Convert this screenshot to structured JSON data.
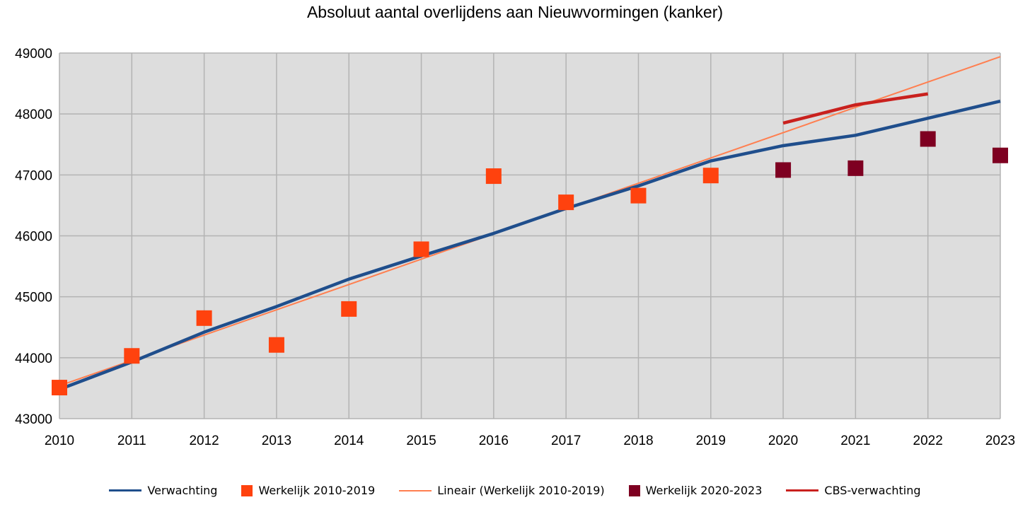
{
  "chart_data": {
    "type": "line",
    "title": "Absoluut aantal overlijdens aan Nieuwvormingen (kanker)",
    "x": [
      2010,
      2011,
      2012,
      2013,
      2014,
      2015,
      2016,
      2017,
      2018,
      2019,
      2020,
      2021,
      2022,
      2023
    ],
    "xlim": [
      2010,
      2023
    ],
    "ylim": [
      43000,
      49000
    ],
    "yticks": [
      "43000",
      "44000",
      "45000",
      "46000",
      "47000",
      "48000",
      "49000"
    ],
    "xticks": [
      "2010",
      "2011",
      "2012",
      "2013",
      "2014",
      "2015",
      "2016",
      "2017",
      "2018",
      "2019",
      "2020",
      "2021",
      "2022",
      "2023"
    ],
    "grid": true,
    "legend_position": "bottom",
    "series": [
      {
        "name": "Verwachting",
        "kind": "line",
        "color": "#1f4e8c",
        "x": [
          2010,
          2011,
          2012,
          2013,
          2014,
          2015,
          2016,
          2017,
          2018,
          2019,
          2020,
          2021,
          2022,
          2023
        ],
        "values": [
          43480,
          43930,
          44420,
          44840,
          45290,
          45670,
          46040,
          46450,
          46820,
          47230,
          47480,
          47650,
          47930,
          48210
        ]
      },
      {
        "name": "Werkelijk 2010-2019",
        "kind": "marker",
        "color": "#ff420e",
        "x": [
          2010,
          2011,
          2012,
          2013,
          2014,
          2015,
          2016,
          2017,
          2018,
          2019
        ],
        "values": [
          43510,
          44030,
          44650,
          44210,
          44800,
          45780,
          46980,
          46550,
          46660,
          46990
        ]
      },
      {
        "name": "Lineair (Werkelijk 2010-2019)",
        "kind": "trend",
        "color": "#ff7f50",
        "x": [
          2010,
          2023
        ],
        "values": [
          43540,
          48940
        ]
      },
      {
        "name": "Werkelijk 2020-2023",
        "kind": "marker",
        "color": "#7e0021",
        "x": [
          2020,
          2021,
          2022,
          2023
        ],
        "values": [
          47080,
          47110,
          47590,
          47320
        ]
      },
      {
        "name": "CBS-verwachting",
        "kind": "line",
        "color": "#c9211e",
        "x": [
          2020,
          2021,
          2022
        ],
        "values": [
          47850,
          48150,
          48330
        ]
      }
    ]
  }
}
